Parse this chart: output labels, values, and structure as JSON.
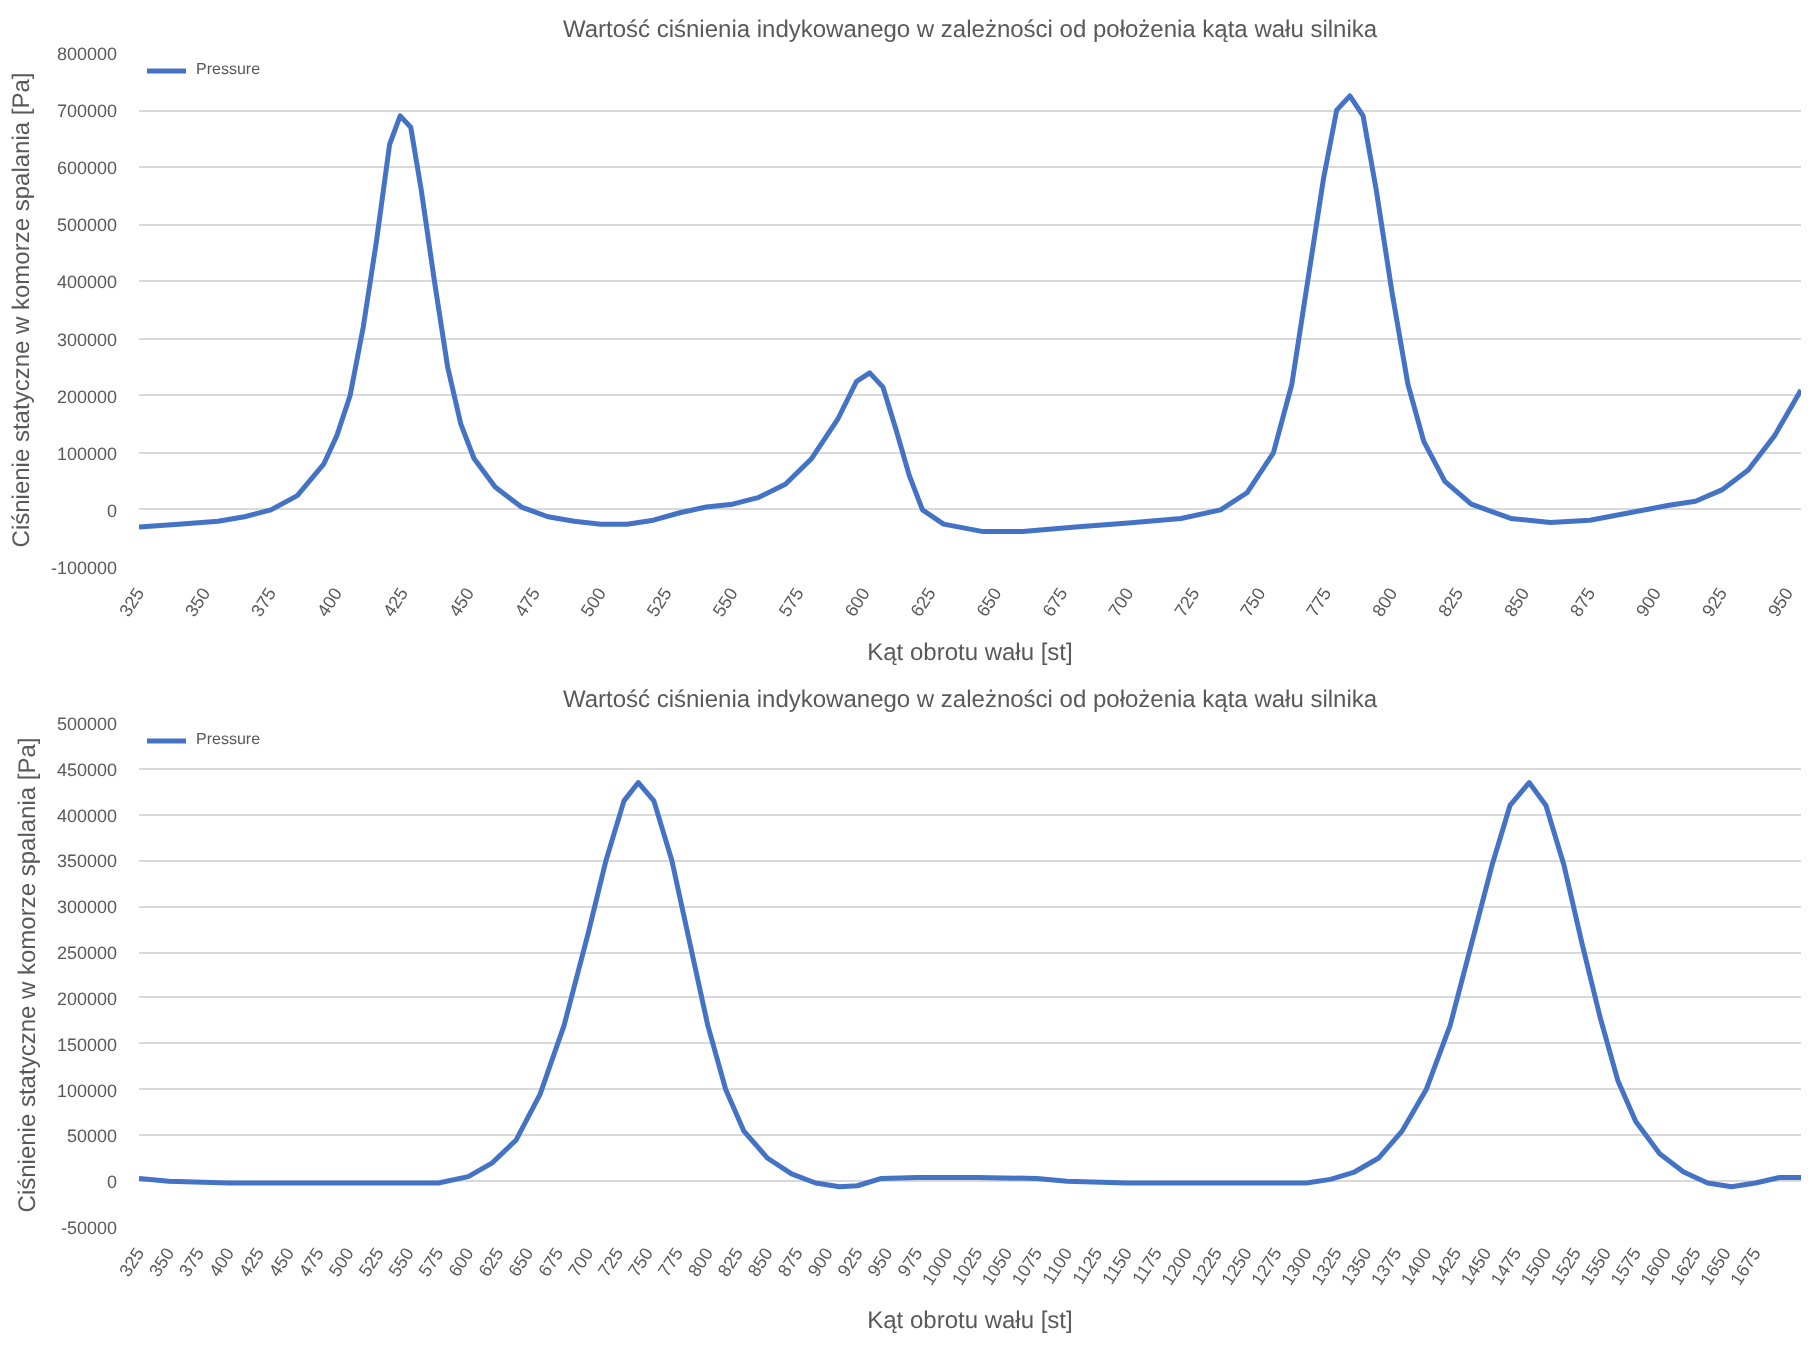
{
  "chart_data": [
    {
      "type": "line",
      "title": "Wartość ciśnienia indykowanego w zależności od położenia kąta wału silnika",
      "xlabel": "Kąt obrotu wału [st]",
      "ylabel": "Ciśnienie statyczne w komorze spalania [Pa]",
      "xlim": [
        325,
        955
      ],
      "ylim": [
        -100000,
        800000
      ],
      "xticks": [
        325,
        350,
        375,
        400,
        425,
        450,
        475,
        500,
        525,
        550,
        575,
        600,
        625,
        650,
        675,
        700,
        725,
        750,
        775,
        800,
        825,
        850,
        875,
        900,
        925,
        950
      ],
      "yticks": [
        -100000,
        0,
        100000,
        200000,
        300000,
        400000,
        500000,
        600000,
        700000,
        800000
      ],
      "grid": "y",
      "legend": "top left",
      "marker": "none",
      "line_style": "solid",
      "series": [
        {
          "name": "Pressure",
          "color": "#4472c4",
          "x": [
            325,
            340,
            355,
            365,
            375,
            385,
            395,
            400,
            405,
            410,
            415,
            420,
            424,
            428,
            432,
            437,
            442,
            447,
            452,
            460,
            470,
            480,
            490,
            500,
            510,
            520,
            530,
            540,
            550,
            560,
            570,
            580,
            590,
            597,
            602,
            607,
            612,
            617,
            622,
            630,
            645,
            660,
            680,
            700,
            720,
            735,
            745,
            755,
            762,
            768,
            774,
            779,
            784,
            789,
            794,
            800,
            806,
            812,
            820,
            830,
            845,
            860,
            875,
            890,
            905,
            915,
            925,
            935,
            945,
            955
          ],
          "values": [
            -30000,
            -25000,
            -20000,
            -12000,
            0,
            25000,
            80000,
            130000,
            200000,
            320000,
            470000,
            640000,
            690000,
            670000,
            560000,
            400000,
            250000,
            150000,
            90000,
            40000,
            5000,
            -12000,
            -20000,
            -25000,
            -25000,
            -18000,
            -5000,
            5000,
            10000,
            22000,
            45000,
            90000,
            160000,
            225000,
            240000,
            215000,
            140000,
            60000,
            0,
            -25000,
            -38000,
            -38000,
            -30000,
            -23000,
            -15000,
            0,
            30000,
            100000,
            220000,
            400000,
            580000,
            700000,
            725000,
            690000,
            560000,
            380000,
            220000,
            120000,
            50000,
            10000,
            -15000,
            -22000,
            -18000,
            -5000,
            8000,
            15000,
            35000,
            70000,
            130000,
            210000
          ]
        }
      ]
    },
    {
      "type": "line",
      "title": "Wartość ciśnienia indykowanego w zależności od położenia kąta wału silnika",
      "xlabel": "Kąt obrotu wału [st]",
      "ylabel": "Ciśnienie statyczne w komorze spalania [Pa]",
      "xlim": [
        325,
        1713
      ],
      "ylim": [
        -50000,
        500000
      ],
      "xticks": [
        325,
        350,
        375,
        400,
        425,
        450,
        475,
        500,
        525,
        550,
        575,
        600,
        625,
        650,
        675,
        700,
        725,
        750,
        775,
        800,
        825,
        850,
        875,
        900,
        925,
        950,
        975,
        1000,
        1025,
        1050,
        1075,
        1100,
        1125,
        1150,
        1175,
        1200,
        1225,
        1250,
        1275,
        1300,
        1325,
        1350,
        1375,
        1400,
        1425,
        1450,
        1475,
        1500,
        1525,
        1550,
        1575,
        1600,
        1625,
        1650,
        1675
      ],
      "yticks": [
        -50000,
        0,
        50000,
        100000,
        150000,
        200000,
        250000,
        300000,
        350000,
        400000,
        450000,
        500000
      ],
      "grid": "y",
      "legend": "top left",
      "marker": "none",
      "line_style": "solid",
      "series": [
        {
          "name": "Pressure",
          "color": "#4472c4",
          "x": [
            325,
            350,
            400,
            450,
            500,
            575,
            600,
            620,
            640,
            660,
            680,
            700,
            715,
            730,
            742,
            755,
            770,
            785,
            800,
            815,
            830,
            850,
            870,
            890,
            910,
            925,
            945,
            975,
            1025,
            1075,
            1100,
            1150,
            1200,
            1250,
            1300,
            1320,
            1340,
            1360,
            1380,
            1400,
            1420,
            1440,
            1455,
            1470,
            1486,
            1500,
            1515,
            1530,
            1545,
            1560,
            1575,
            1595,
            1615,
            1635,
            1655,
            1675,
            1695,
            1713
          ],
          "values": [
            3000,
            0,
            -2000,
            -2000,
            -2000,
            -2000,
            5000,
            20000,
            45000,
            95000,
            170000,
            270000,
            350000,
            415000,
            435000,
            415000,
            350000,
            260000,
            170000,
            100000,
            55000,
            25000,
            8000,
            -2000,
            -6000,
            -5000,
            3000,
            4000,
            4000,
            3000,
            0,
            -2000,
            -2000,
            -2000,
            -2000,
            2000,
            10000,
            25000,
            55000,
            100000,
            170000,
            270000,
            345000,
            410000,
            435000,
            410000,
            345000,
            260000,
            180000,
            110000,
            65000,
            30000,
            10000,
            -2000,
            -6000,
            -2000,
            4000,
            4000
          ]
        }
      ]
    }
  ]
}
